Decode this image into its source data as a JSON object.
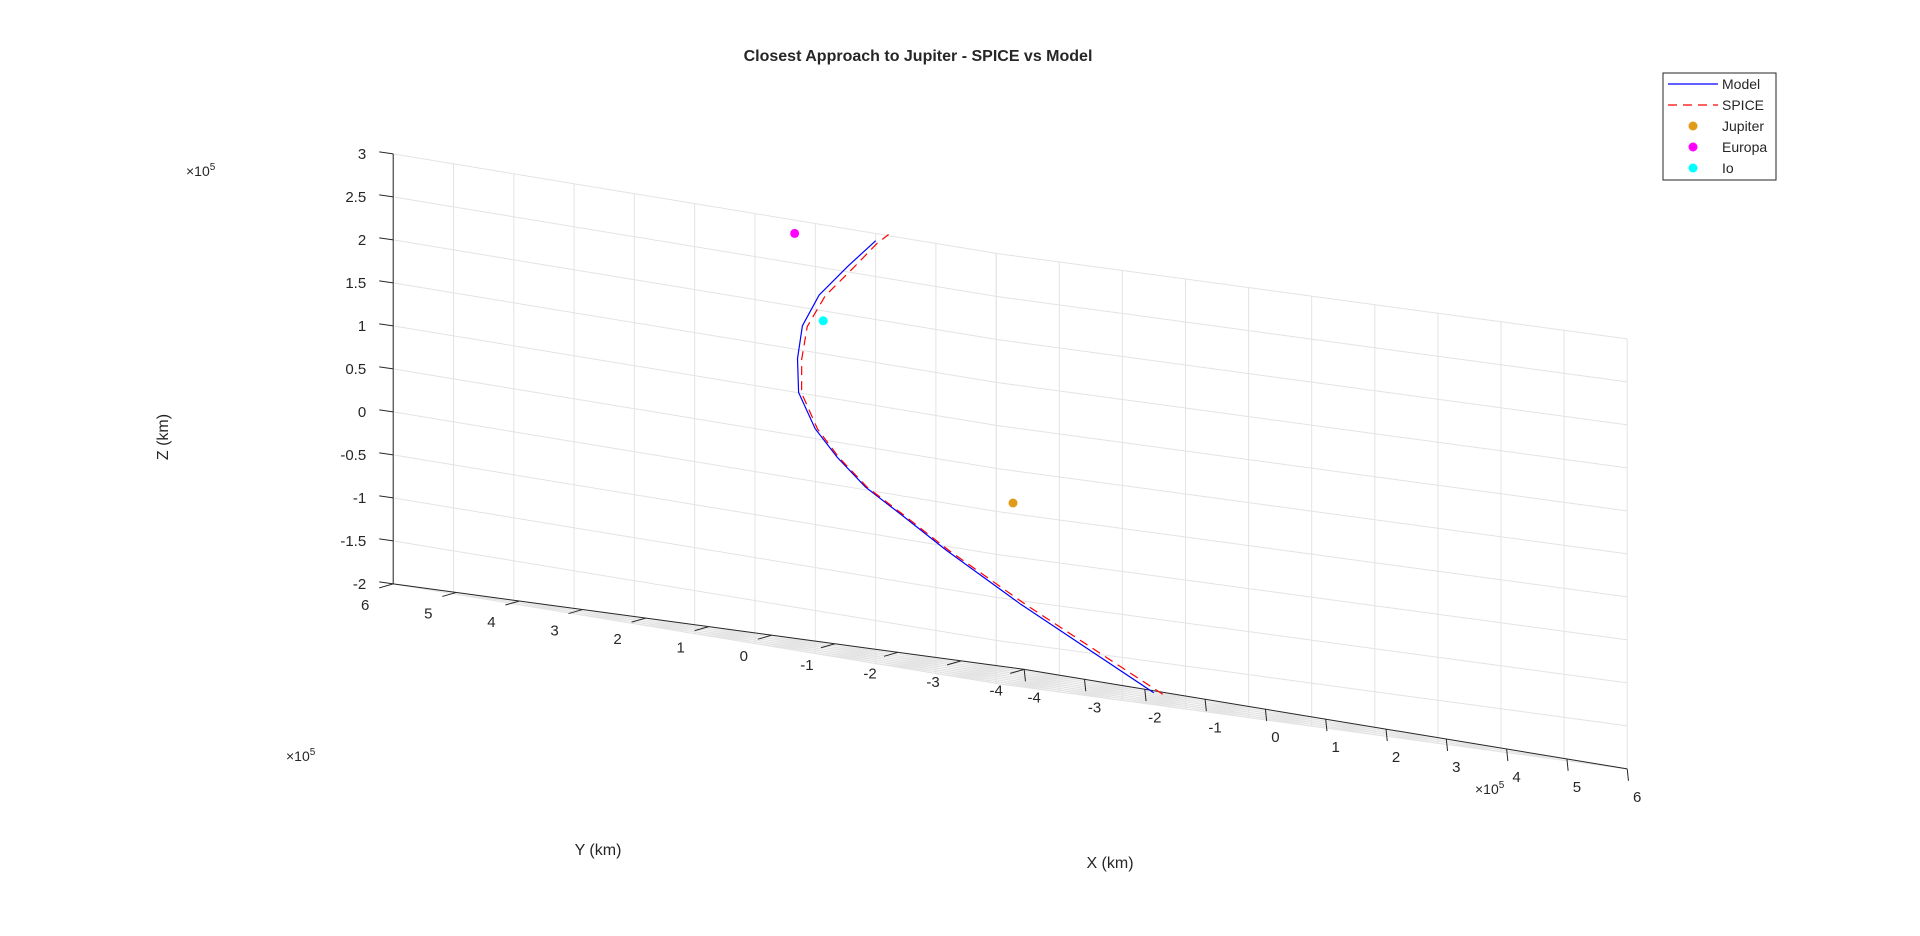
{
  "chart_data": {
    "type": "line3d",
    "title": "Closest Approach to Jupiter - SPICE vs Model",
    "xlabel": "X (km)",
    "ylabel": "Y (km)",
    "zlabel": "Z (km)",
    "xlim": [
      -400000,
      600000
    ],
    "ylim": [
      -400000,
      600000
    ],
    "zlim": [
      -200000,
      300000
    ],
    "x_ticks": [
      "-4",
      "-3",
      "-2",
      "-1",
      "0",
      "1",
      "2",
      "3",
      "4",
      "5",
      "6"
    ],
    "y_ticks": [
      "-4",
      "-3",
      "-2",
      "-1",
      "0",
      "1",
      "2",
      "3",
      "4",
      "5",
      "6"
    ],
    "z_ticks": [
      "-2",
      "-1.5",
      "-1",
      "-0.5",
      "0",
      "0.5",
      "1",
      "1.5",
      "2",
      "2.5",
      "3"
    ],
    "x_multiplier": "×10",
    "y_multiplier": "×10",
    "z_multiplier": "×10",
    "multiplier_exponent": "5",
    "grid": true,
    "legend_position": "top-right",
    "series": [
      {
        "name": "Model",
        "color": "#0000ff",
        "style": "solid",
        "points": [
          [
            -70000,
            -290000,
            -200000
          ],
          [
            -165000,
            -170000,
            -120000
          ],
          [
            -215000,
            -100000,
            -70000
          ],
          [
            -240000,
            -50000,
            -35000
          ],
          [
            -255000,
            -10000,
            -10000
          ],
          [
            -260000,
            30000,
            20000
          ],
          [
            -255000,
            70000,
            50000
          ],
          [
            -230000,
            120000,
            90000
          ],
          [
            -190000,
            160000,
            130000
          ],
          [
            -140000,
            200000,
            170000
          ],
          [
            -60000,
            250000,
            210000
          ],
          [
            40000,
            300000,
            250000
          ],
          [
            110000,
            330000,
            280000
          ],
          [
            125000,
            337000,
            286000
          ]
        ]
      },
      {
        "name": "SPICE",
        "color": "#ff0000",
        "style": "dashed",
        "points": [
          [
            -55000,
            -290000,
            -200000
          ],
          [
            -155000,
            -170000,
            -120000
          ],
          [
            -210000,
            -100000,
            -70000
          ],
          [
            -236000,
            -50000,
            -35000
          ],
          [
            -252000,
            -10000,
            -10000
          ],
          [
            -257000,
            30000,
            20000
          ],
          [
            -251000,
            70000,
            50000
          ],
          [
            -225000,
            120000,
            90000
          ],
          [
            -183000,
            160000,
            130000
          ],
          [
            -132000,
            200000,
            170000
          ],
          [
            -50000,
            250000,
            210000
          ],
          [
            50000,
            300000,
            250000
          ],
          [
            125000,
            335000,
            283000
          ],
          [
            162000,
            352000,
            296000
          ]
        ]
      }
    ],
    "markers": [
      {
        "name": "Jupiter",
        "color": "#e09b1b",
        "point": [
          0,
          0,
          0
        ]
      },
      {
        "name": "Europa",
        "color": "#ff00ff",
        "point": [
          46000,
          390000,
          280000
        ]
      },
      {
        "name": "Io",
        "color": "#00ffff",
        "point": [
          -95000,
          210000,
          180000
        ]
      }
    ]
  }
}
